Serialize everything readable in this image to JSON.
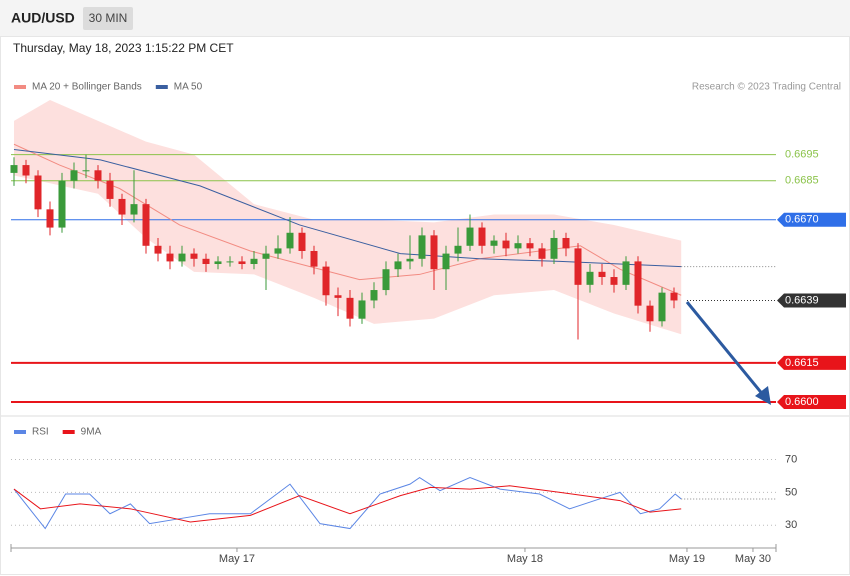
{
  "header": {
    "symbol": "AUD/USD",
    "interval": "30 MIN",
    "timestamp": "Thursday, May 18, 2023 1:15:22 PM CET",
    "credit": "Research © 2023 Trading Central"
  },
  "chart_data": [
    {
      "type": "candlestick",
      "up_color": "#3a9a3a",
      "down_color": "#e0262a",
      "xlim": [
        -0.25,
        63.5
      ],
      "ylim": [
        0.6595,
        0.6716
      ],
      "open": [
        0.6688,
        0.6691,
        0.6687,
        0.6674,
        0.6667,
        0.6685,
        0.6689,
        0.6689,
        0.6685,
        0.6678,
        0.6672,
        0.6676,
        0.666,
        0.6657,
        0.6654,
        0.6657,
        0.6655,
        0.6653,
        0.6654,
        0.6654,
        0.6653,
        0.6655,
        0.6657,
        0.6659,
        0.6665,
        0.6658,
        0.6652,
        0.6641,
        0.664,
        0.6632,
        0.6639,
        0.6643,
        0.6651,
        0.6654,
        0.6655,
        0.6664,
        0.6651,
        0.6657,
        0.666,
        0.6667,
        0.666,
        0.6662,
        0.6659,
        0.6661,
        0.6659,
        0.6655,
        0.6663,
        0.6659,
        0.6645,
        0.665,
        0.6648,
        0.6645,
        0.6654,
        0.6637,
        0.6631,
        0.6642
      ],
      "high": [
        0.6694,
        0.6693,
        0.6689,
        0.6677,
        0.6688,
        0.6692,
        0.6695,
        0.6691,
        0.6688,
        0.668,
        0.6689,
        0.6678,
        0.6663,
        0.666,
        0.666,
        0.6659,
        0.6657,
        0.6656,
        0.6656,
        0.6656,
        0.6658,
        0.666,
        0.6664,
        0.6671,
        0.6667,
        0.666,
        0.6654,
        0.6644,
        0.6643,
        0.6642,
        0.6646,
        0.6654,
        0.6657,
        0.6664,
        0.6667,
        0.6666,
        0.666,
        0.6667,
        0.6672,
        0.6669,
        0.6664,
        0.6665,
        0.6664,
        0.6663,
        0.6661,
        0.6666,
        0.6665,
        0.6661,
        0.6653,
        0.6653,
        0.6651,
        0.6656,
        0.6656,
        0.6639,
        0.6644,
        0.6644
      ],
      "low": [
        0.6683,
        0.6684,
        0.6671,
        0.6664,
        0.6665,
        0.6682,
        0.6686,
        0.6682,
        0.6675,
        0.6668,
        0.6669,
        0.6657,
        0.6654,
        0.6651,
        0.6652,
        0.6652,
        0.665,
        0.6651,
        0.6652,
        0.6651,
        0.6651,
        0.6643,
        0.6655,
        0.6657,
        0.6655,
        0.6649,
        0.6637,
        0.6633,
        0.6629,
        0.663,
        0.6636,
        0.6641,
        0.6648,
        0.6651,
        0.6652,
        0.6643,
        0.6643,
        0.6654,
        0.6658,
        0.6657,
        0.6657,
        0.6656,
        0.6657,
        0.6656,
        0.6652,
        0.6653,
        0.6656,
        0.6624,
        0.6642,
        0.6645,
        0.6642,
        0.6643,
        0.6634,
        0.6627,
        0.6629,
        0.6636
      ],
      "close": [
        0.6691,
        0.6687,
        0.6674,
        0.6667,
        0.6685,
        0.6689,
        0.6689,
        0.6685,
        0.6678,
        0.6672,
        0.6676,
        0.666,
        0.6657,
        0.6654,
        0.6657,
        0.6655,
        0.6653,
        0.6654,
        0.6654,
        0.6653,
        0.6655,
        0.6657,
        0.6659,
        0.6665,
        0.6658,
        0.6652,
        0.6641,
        0.664,
        0.6632,
        0.6639,
        0.6643,
        0.6651,
        0.6654,
        0.6655,
        0.6664,
        0.6651,
        0.6657,
        0.666,
        0.6667,
        0.666,
        0.6662,
        0.6659,
        0.6661,
        0.6659,
        0.6655,
        0.6663,
        0.6659,
        0.6645,
        0.665,
        0.6648,
        0.6645,
        0.6654,
        0.6637,
        0.6631,
        0.6642,
        0.6639
      ],
      "series": [
        {
          "name": "MA 20 + Bollinger Bands",
          "color": "#f28b82",
          "x": [
            0,
            3.8,
            8.8,
            13.8,
            19.7,
            25.5,
            28.8,
            33.8,
            38.8,
            43.8,
            47.2,
            50.5,
            55.6
          ],
          "values": [
            0.6699,
            0.6691,
            0.6682,
            0.6668,
            0.6658,
            0.6651,
            0.6647,
            0.6649,
            0.6655,
            0.6658,
            0.666,
            0.6651,
            0.6641
          ],
          "band": {
            "x": [
              0,
              3,
              7,
              11,
              15,
              20,
              25,
              30,
              35,
              40,
              45,
              50,
              55.6
            ],
            "upper": [
              0.6708,
              0.6716,
              0.6708,
              0.67,
              0.6695,
              0.6676,
              0.667,
              0.667,
              0.6669,
              0.6672,
              0.6672,
              0.6668,
              0.6662
            ],
            "lower": [
              0.6687,
              0.6684,
              0.668,
              0.6663,
              0.665,
              0.6649,
              0.664,
              0.663,
              0.6632,
              0.6641,
              0.6643,
              0.6634,
              0.6626
            ],
            "color": "#fde0de"
          }
        },
        {
          "name": "MA 50",
          "color": "#3a5fa0",
          "x": [
            0,
            7.2,
            15.5,
            23.8,
            32.2,
            38.8,
            45.5,
            50.5,
            55.6
          ],
          "values": [
            0.6697,
            0.6693,
            0.6683,
            0.6668,
            0.6657,
            0.6655,
            0.6654,
            0.6653,
            0.6652
          ]
        }
      ],
      "levels": [
        {
          "value": 0.6695,
          "label": "0.6695",
          "color": "#8bc34a",
          "line": "solid",
          "boxed": false
        },
        {
          "value": 0.6685,
          "label": "0.6685",
          "color": "#8bc34a",
          "line": "solid",
          "boxed": false
        },
        {
          "value": 0.667,
          "label": "0.6670",
          "color": "#2f6fe8",
          "line": "solid",
          "boxed": true
        },
        {
          "value": 0.6639,
          "label": "0.6639",
          "color": "#333333",
          "line": "dotted",
          "boxed": true
        },
        {
          "value": 0.6615,
          "label": "0.6615",
          "color": "#e8141a",
          "line": "thick",
          "boxed": true
        },
        {
          "value": 0.66,
          "label": "0.6600",
          "color": "#e8141a",
          "line": "thick",
          "boxed": true
        }
      ]
    },
    {
      "type": "line",
      "xlim": [
        -0.25,
        63.5
      ],
      "ylim": [
        18,
        94
      ],
      "yticks": [
        30,
        50,
        70
      ],
      "xticks": [
        {
          "value": 18.58,
          "label": "May 17"
        },
        {
          "value": 42.58,
          "label": "May 18"
        },
        {
          "value": 56.08,
          "label": "May 19"
        },
        {
          "value": 61.58,
          "label": "May 30"
        }
      ],
      "series": [
        {
          "name": "RSI",
          "color": "#5b86e5",
          "x": [
            0,
            2.6,
            4.3,
            6.3,
            8,
            9.7,
            11.3,
            13.8,
            16.3,
            19.7,
            23,
            25.5,
            28,
            30.5,
            33,
            33.8,
            35.5,
            38,
            40.5,
            43.8,
            46.3,
            48.8,
            50.5,
            52.2,
            53.8,
            55.1,
            55.6
          ],
          "values": [
            52,
            28,
            49,
            49,
            37,
            43,
            31,
            34,
            37,
            37,
            55,
            31,
            28,
            49,
            55,
            59,
            51,
            59,
            52,
            49,
            40,
            46,
            50,
            37,
            40,
            49,
            46
          ]
        },
        {
          "name": "9MA",
          "color": "#e8141a",
          "x": [
            0,
            2.2,
            5.5,
            9.7,
            14.7,
            19.7,
            23.8,
            28,
            32.2,
            34.7,
            38,
            41.3,
            45.5,
            50.5,
            53,
            55.6
          ],
          "values": [
            52,
            40,
            43,
            40,
            32,
            36,
            48,
            37,
            48,
            53,
            52,
            54,
            50,
            45,
            38,
            40
          ]
        }
      ]
    }
  ]
}
